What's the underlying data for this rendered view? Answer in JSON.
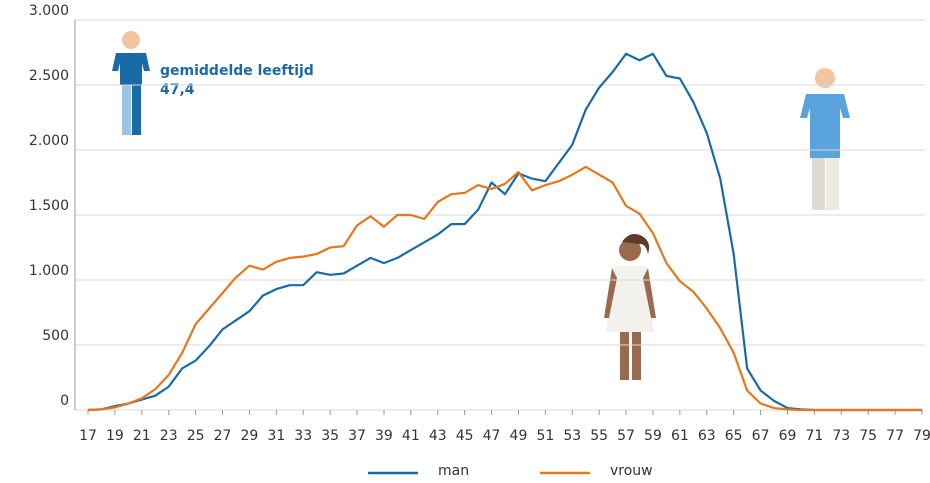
{
  "chart_data": {
    "type": "line",
    "x": [
      17,
      18,
      19,
      20,
      21,
      22,
      23,
      24,
      25,
      26,
      27,
      28,
      29,
      30,
      31,
      32,
      33,
      34,
      35,
      36,
      37,
      38,
      39,
      40,
      41,
      42,
      43,
      44,
      45,
      46,
      47,
      48,
      49,
      50,
      51,
      52,
      53,
      54,
      55,
      56,
      57,
      58,
      59,
      60,
      61,
      62,
      63,
      64,
      65,
      66,
      67,
      68,
      69,
      70,
      71,
      72,
      73,
      74,
      75,
      76,
      77,
      78,
      79
    ],
    "series": [
      {
        "name": "man",
        "color": "#1a6aa8",
        "values": [
          0,
          5,
          30,
          50,
          80,
          110,
          180,
          320,
          380,
          490,
          620,
          690,
          760,
          880,
          930,
          960,
          960,
          1060,
          1040,
          1050,
          1110,
          1170,
          1130,
          1170,
          1230,
          1290,
          1350,
          1430,
          1430,
          1540,
          1750,
          1660,
          1820,
          1780,
          1760,
          1900,
          2040,
          2310,
          2480,
          2600,
          2740,
          2690,
          2740,
          2570,
          2550,
          2370,
          2130,
          1780,
          1200,
          320,
          150,
          70,
          15,
          5,
          0,
          0,
          0,
          0,
          0,
          0,
          0,
          0,
          0
        ]
      },
      {
        "name": "vrouw",
        "color": "#e8761b",
        "values": [
          0,
          5,
          20,
          50,
          90,
          160,
          270,
          440,
          660,
          780,
          900,
          1020,
          1110,
          1080,
          1140,
          1170,
          1180,
          1200,
          1250,
          1260,
          1420,
          1490,
          1410,
          1500,
          1500,
          1470,
          1600,
          1660,
          1670,
          1730,
          1700,
          1740,
          1830,
          1690,
          1730,
          1760,
          1810,
          1870,
          1810,
          1750,
          1570,
          1510,
          1360,
          1130,
          990,
          910,
          780,
          630,
          440,
          150,
          50,
          15,
          5,
          0,
          0,
          0,
          0,
          0,
          0,
          0,
          0,
          0,
          0
        ]
      }
    ],
    "xlim": [
      17,
      79
    ],
    "xticks": [
      17,
      19,
      21,
      23,
      25,
      27,
      29,
      31,
      33,
      35,
      37,
      39,
      41,
      43,
      45,
      47,
      49,
      51,
      53,
      55,
      57,
      59,
      61,
      63,
      65,
      67,
      69,
      71,
      73,
      75,
      77,
      79
    ],
    "ylim": [
      0,
      3000
    ],
    "yticks": [
      0,
      500,
      {
        "value": 1000,
        "label": "1.000"
      },
      {
        "value": 1500,
        "label": "1.500"
      },
      {
        "value": 2000,
        "label": "2.000"
      },
      {
        "value": 2500,
        "label": "2.500"
      },
      {
        "value": 3000,
        "label": "3.000"
      }
    ],
    "grid": true,
    "annotations": [
      "gemiddelde leeftijd",
      "47,4"
    ]
  }
}
